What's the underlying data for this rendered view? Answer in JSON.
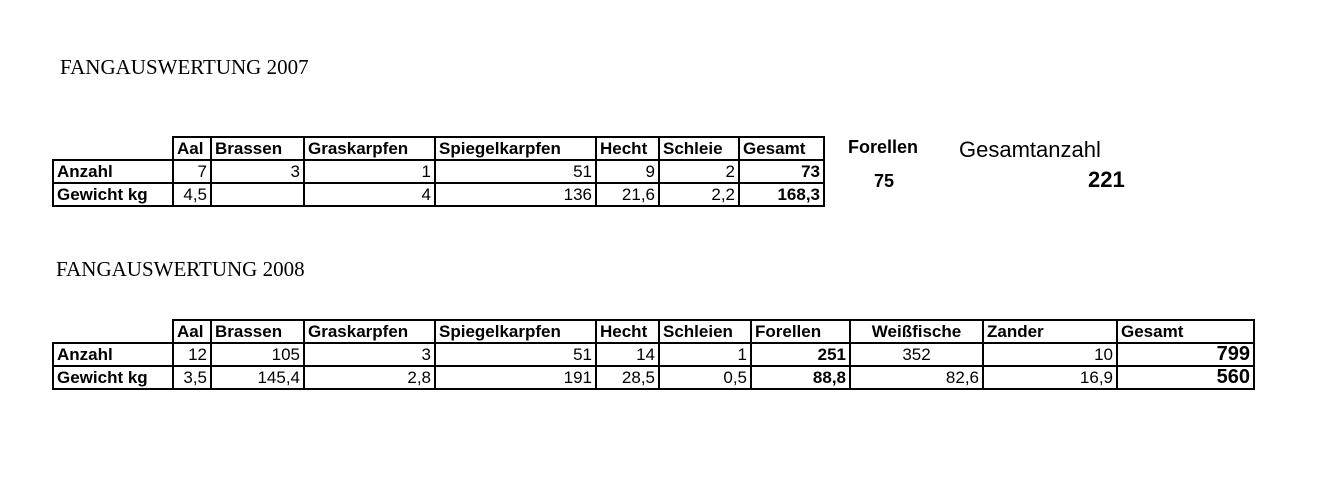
{
  "title_2007": "FANGAUSWERTUNG 2007",
  "title_2008": "FANGAUSWERTUNG 2008",
  "row_labels": {
    "count": "Anzahl",
    "weight": "Gewicht kg"
  },
  "table_2007": {
    "headers": [
      "Aal",
      "Brassen",
      "Graskarpfen",
      "Spiegelkarpfen",
      "Hecht",
      "Schleie",
      "Gesamt"
    ],
    "count": [
      "7",
      "3",
      "1",
      "51",
      "9",
      "2",
      "73"
    ],
    "weight": [
      "4,5",
      "",
      "4",
      "136",
      "21,6",
      "2,2",
      "168,3"
    ]
  },
  "side_2007": {
    "forellen_label": "Forellen",
    "forellen_value": "75",
    "total_label": "Gesamtanzahl",
    "total_value": "221"
  },
  "table_2008": {
    "headers": [
      "Aal",
      "Brassen",
      "Graskarpfen",
      "Spiegelkarpfen",
      "Hecht",
      "Schleien",
      "Forellen",
      "Weißfische",
      "Zander",
      "Gesamt"
    ],
    "count": [
      "12",
      "105",
      "3",
      "51",
      "14",
      "1",
      "251",
      "352",
      "10",
      "799"
    ],
    "weight": [
      "3,5",
      "145,4",
      "2,8",
      "191",
      "28,5",
      "0,5",
      "88,8",
      "82,6",
      "16,9",
      "560"
    ]
  }
}
